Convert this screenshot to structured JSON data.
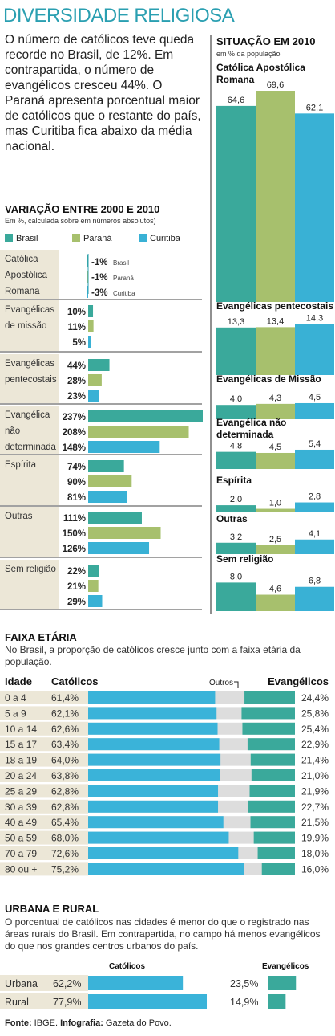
{
  "header": {
    "title": "DIVERSIDADE RELIGIOSA",
    "intro": "O número de católicos teve queda recorde no Brasil, de 12%. Em contrapartida, o número de evangélicos cresceu 44%. O Paraná apresenta porcentual maior de católicos que o restante do país, mas Curitiba fica abaixo da média nacional."
  },
  "colors": {
    "brasil": "#3aa99b",
    "parana": "#a7c06d",
    "curitiba": "#39b1d5",
    "catolicos": "#3ab3d9",
    "outros": "#dddddd",
    "evangelicos": "#3aa99b",
    "title": "#2a9fb1"
  },
  "variacao": {
    "title": "VARIAÇÃO ENTRE 2000 E 2010",
    "subtitle": "Em %, calculada sobre em números absolutos)",
    "legend": [
      "Brasil",
      "Paraná",
      "Curitiba"
    ]
  },
  "situacao": {
    "title": "SITUAÇÃO EM 2010",
    "subtitle": "em % da população"
  },
  "faixa": {
    "title": "FAIXA ETÁRIA",
    "desc": "No Brasil, a proporção de católicos cresce junto com a faixa etária da população.",
    "col_idade": "Idade",
    "col_catolicos": "Católicos",
    "col_outros": "Outros",
    "col_evangelicos": "Evangélicos"
  },
  "urbana": {
    "title": "URBANA E RURAL",
    "desc": "O porcentual de católicos nas cidades é menor do que o registrado nas áreas rurais do Brasil. Em contrapartida, no campo há menos evangélicos do que nos grandes centros urbanos do país.",
    "col_catolicos": "Católicos",
    "col_evangelicos": "Evangélicos"
  },
  "source": {
    "label": "Fonte:",
    "text": " IBGE. ",
    "label2": "Infografia:",
    "text2": " Gazeta do Povo."
  },
  "chart_data": [
    {
      "type": "bar",
      "id": "variacao",
      "title": "VARIAÇÃO ENTRE 2000 E 2010",
      "subtitle": "Em %, calculada sobre em números absolutos)",
      "categories": [
        [
          "Católica",
          "Apostólica",
          "Romana"
        ],
        [
          "Evangélicas",
          "de missão"
        ],
        [
          "Evangélicas",
          "pentecostais"
        ],
        [
          "Evangélica",
          "não",
          "determinada"
        ],
        [
          "Espírita"
        ],
        [
          "Outras"
        ],
        [
          "Sem religião"
        ]
      ],
      "series": [
        {
          "name": "Brasil",
          "values": [
            -1,
            10,
            44,
            237,
            74,
            111,
            22
          ]
        },
        {
          "name": "Paraná",
          "values": [
            -1,
            11,
            28,
            208,
            90,
            150,
            21
          ]
        },
        {
          "name": "Curitiba",
          "values": [
            -3,
            5,
            23,
            148,
            81,
            126,
            29
          ]
        }
      ],
      "labels": [
        [
          "-1%",
          "-1%",
          "-3%"
        ],
        [
          "10%",
          "11%",
          "5%"
        ],
        [
          "44%",
          "28%",
          "23%"
        ],
        [
          "237%",
          "208%",
          "148%"
        ],
        [
          "74%",
          "90%",
          "81%"
        ],
        [
          "111%",
          "150%",
          "126%"
        ],
        [
          "22%",
          "21%",
          "29%"
        ]
      ],
      "catolica_suffix": [
        "Brasil",
        "Paraná",
        "Curitiba"
      ]
    },
    {
      "type": "bar",
      "id": "situacao",
      "title": "SITUAÇÃO EM 2010",
      "subtitle": "em % da população",
      "groups": [
        {
          "label": [
            "Católica Apostólica",
            "Romana"
          ],
          "values": [
            64.6,
            69.6,
            62.1
          ],
          "labels": [
            "64,6",
            "69,6",
            "62,1"
          ]
        },
        {
          "label": [
            "Evangélicas pentecostais"
          ],
          "values": [
            13.3,
            13.4,
            14.3
          ],
          "labels": [
            "13,3",
            "13,4",
            "14,3"
          ]
        },
        {
          "label": [
            "Evangélicas de Missão"
          ],
          "values": [
            4.0,
            4.3,
            4.5
          ],
          "labels": [
            "4,0",
            "4,3",
            "4,5"
          ]
        },
        {
          "label": [
            "Evangélica não",
            "determinada"
          ],
          "values": [
            4.8,
            4.5,
            5.4
          ],
          "labels": [
            "4,8",
            "4,5",
            "5,4"
          ]
        },
        {
          "label": [
            "Espírita"
          ],
          "values": [
            2.0,
            1.0,
            2.8
          ],
          "labels": [
            "2,0",
            "1,0",
            "2,8"
          ]
        },
        {
          "label": [
            "Outras"
          ],
          "values": [
            3.2,
            2.5,
            4.1
          ],
          "labels": [
            "3,2",
            "2,5",
            "4,1"
          ]
        },
        {
          "label": [
            "Sem religião"
          ],
          "values": [
            8.0,
            4.6,
            6.8
          ],
          "labels": [
            "8,0",
            "4,6",
            "6,8"
          ]
        }
      ],
      "series_names": [
        "Brasil",
        "Paraná",
        "Curitiba"
      ]
    },
    {
      "type": "bar",
      "id": "faixa_etaria",
      "stacked": true,
      "title": "FAIXA ETÁRIA",
      "categories": [
        "0 a 4",
        "5 a 9",
        "10 a 14",
        "15 a 17",
        "18 a 19",
        "20 a 24",
        "25 a 29",
        "30 a 39",
        "40 a 49",
        "50 a 59",
        "70 a 79",
        "80 ou +"
      ],
      "catolicos": [
        61.4,
        62.1,
        62.6,
        63.4,
        64.0,
        63.8,
        62.8,
        62.8,
        65.4,
        68.0,
        72.6,
        75.2
      ],
      "evangelicos": [
        24.4,
        25.8,
        25.4,
        22.9,
        21.4,
        21.0,
        21.9,
        22.7,
        21.5,
        19.9,
        18.0,
        16.0
      ],
      "cat_labels": [
        "61,4%",
        "62,1%",
        "62,6%",
        "63,4%",
        "64,0%",
        "63,8%",
        "62,8%",
        "62,8%",
        "65,4%",
        "68,0%",
        "72,6%",
        "75,2%"
      ],
      "ev_labels": [
        "24,4%",
        "25,8%",
        "25,4%",
        "22,9%",
        "21,4%",
        "21,0%",
        "21,9%",
        "22,7%",
        "21,5%",
        "19,9%",
        "18,0%",
        "16,0%"
      ]
    },
    {
      "type": "bar",
      "id": "urbana_rural",
      "title": "URBANA E RURAL",
      "categories": [
        "Urbana",
        "Rural"
      ],
      "catolicos": [
        62.2,
        77.9
      ],
      "evangelicos": [
        23.5,
        14.9
      ],
      "cat_labels": [
        "62,2%",
        "77,9%"
      ],
      "ev_labels": [
        "23,5%",
        "14,9%"
      ]
    }
  ]
}
